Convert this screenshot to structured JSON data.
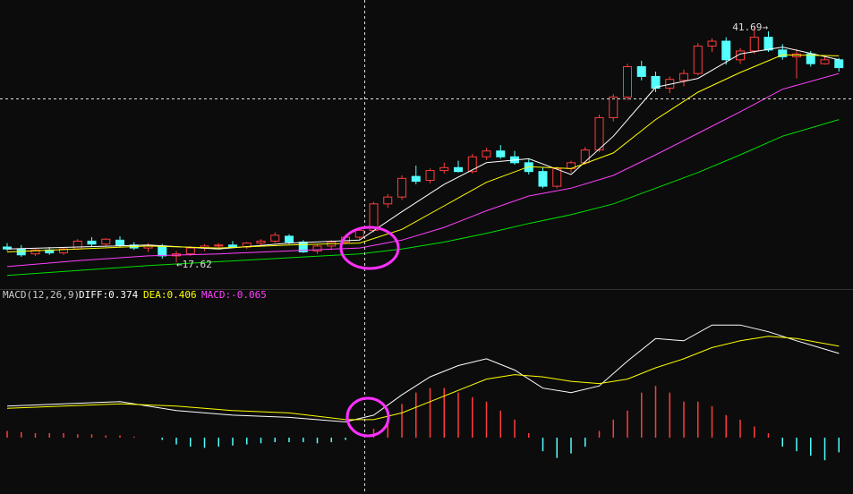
{
  "chart_data": [
    {
      "type": "candlestick",
      "open": [
        19.2,
        19.0,
        18.5,
        18.9,
        18.6,
        19.0,
        19.8,
        19.5,
        19.9,
        19.4,
        19.1,
        19.3,
        18.3,
        18.5,
        19.1,
        19.3,
        19.4,
        19.2,
        19.6,
        19.8,
        20.3,
        19.7,
        18.8,
        19.3,
        19.7,
        20.2,
        20.9,
        23.6,
        24.3,
        26.4,
        26.0,
        27.0,
        27.3,
        26.9,
        28.4,
        29.0,
        28.4,
        27.8,
        26.9,
        25.4,
        27.2,
        27.8,
        29.1,
        32.4,
        34.5,
        37.6,
        36.6,
        35.4,
        36.2,
        36.9,
        39.7,
        40.2,
        38.3,
        39.2,
        40.6,
        39.3,
        38.6,
        38.9,
        37.9,
        38.3
      ],
      "high": [
        19.6,
        19.4,
        19.0,
        19.2,
        19.1,
        20.0,
        20.2,
        20.1,
        20.3,
        19.7,
        19.6,
        19.5,
        18.8,
        19.3,
        19.5,
        19.6,
        19.8,
        19.7,
        20.0,
        20.7,
        20.5,
        19.9,
        19.5,
        19.9,
        20.4,
        21.1,
        23.8,
        24.6,
        26.5,
        27.5,
        27.2,
        27.8,
        28.0,
        28.7,
        29.3,
        29.6,
        29.0,
        28.2,
        27.3,
        27.4,
        28.0,
        29.4,
        32.7,
        34.8,
        37.9,
        38.2,
        37.1,
        36.6,
        37.3,
        40.0,
        40.5,
        40.6,
        39.5,
        41.69,
        41.2,
        39.9,
        39.4,
        39.2,
        38.6,
        38.5
      ],
      "low": [
        18.8,
        18.2,
        18.3,
        18.4,
        18.4,
        18.9,
        19.3,
        19.3,
        19.2,
        18.9,
        18.7,
        18.0,
        17.62,
        18.3,
        18.8,
        19.0,
        19.1,
        19.0,
        19.3,
        19.6,
        19.5,
        18.6,
        18.5,
        18.9,
        19.5,
        19.9,
        20.7,
        23.2,
        24.0,
        25.6,
        25.7,
        26.7,
        26.8,
        26.7,
        28.1,
        28.2,
        27.6,
        26.6,
        25.2,
        25.2,
        26.8,
        27.6,
        28.9,
        32.0,
        34.2,
        36.2,
        35.0,
        34.9,
        35.6,
        36.7,
        39.1,
        37.8,
        37.9,
        38.9,
        39.1,
        38.3,
        36.4,
        37.6,
        37.8,
        37.1
      ],
      "close": [
        19.0,
        18.4,
        18.9,
        18.6,
        19.0,
        19.8,
        19.5,
        20.0,
        19.4,
        19.1,
        19.3,
        18.3,
        18.5,
        19.1,
        19.3,
        19.4,
        19.2,
        19.6,
        19.8,
        20.4,
        19.7,
        18.7,
        19.3,
        19.7,
        20.2,
        20.9,
        23.6,
        24.3,
        26.2,
        25.9,
        27.0,
        27.3,
        26.9,
        28.4,
        29.0,
        28.4,
        27.8,
        26.9,
        25.4,
        27.2,
        27.8,
        29.1,
        32.4,
        34.5,
        37.6,
        36.6,
        35.4,
        36.3,
        36.9,
        39.7,
        40.2,
        38.3,
        39.2,
        40.6,
        39.3,
        38.6,
        38.9,
        37.9,
        38.3,
        37.5
      ],
      "up_color": "#ff3c3c",
      "down_color": "#54ffff",
      "ylim": [
        15,
        44.4
      ],
      "annotations": [
        "41.69→",
        "←17.62"
      ],
      "lines_x": [
        0,
        5,
        10,
        15,
        20,
        25,
        28,
        31,
        34,
        37,
        40,
        43,
        46,
        49,
        52,
        55,
        59
      ],
      "lines": [
        {
          "color": "#ffffff",
          "values": [
            19.0,
            19.2,
            19.4,
            19.0,
            19.6,
            19.9,
            22.8,
            25.6,
            27.8,
            28.2,
            26.6,
            30.5,
            35.5,
            36.4,
            38.9,
            39.6,
            38.3
          ]
        },
        {
          "color": "#ffff00",
          "values": [
            18.7,
            19.0,
            19.3,
            19.1,
            19.4,
            19.6,
            21.0,
            23.4,
            25.8,
            27.4,
            27.2,
            28.8,
            32.2,
            35.0,
            37.0,
            38.8,
            38.7
          ]
        },
        {
          "color": "#ff40ff",
          "values": [
            17.2,
            17.8,
            18.3,
            18.5,
            18.8,
            19.1,
            19.9,
            21.2,
            22.9,
            24.4,
            25.2,
            26.5,
            28.6,
            30.8,
            33.0,
            35.3,
            36.9
          ]
        },
        {
          "color": "#00e000",
          "values": [
            16.3,
            16.8,
            17.3,
            17.7,
            18.1,
            18.5,
            19.0,
            19.7,
            20.6,
            21.6,
            22.5,
            23.6,
            25.2,
            26.8,
            28.6,
            30.5,
            32.2
          ]
        }
      ]
    },
    {
      "type": "macd",
      "title": "MACD(12,26,9)",
      "ylim": [
        -0.25,
        0.6
      ],
      "x": [
        0,
        4,
        8,
        12,
        16,
        20,
        24,
        26,
        28,
        30,
        32,
        34,
        36,
        38,
        40,
        42,
        44,
        46,
        48,
        50,
        52,
        54,
        56,
        59
      ],
      "series": [
        {
          "label": "DIFF:0.374",
          "color": "#ffffff",
          "values": [
            0.14,
            0.15,
            0.16,
            0.12,
            0.1,
            0.09,
            0.07,
            0.1,
            0.19,
            0.27,
            0.32,
            0.35,
            0.3,
            0.22,
            0.2,
            0.23,
            0.34,
            0.44,
            0.43,
            0.5,
            0.5,
            0.47,
            0.43,
            0.374
          ]
        },
        {
          "label": "DEA:0.406",
          "color": "#ffff00",
          "values": [
            0.13,
            0.14,
            0.15,
            0.14,
            0.12,
            0.11,
            0.08,
            0.08,
            0.11,
            0.16,
            0.21,
            0.26,
            0.28,
            0.27,
            0.25,
            0.24,
            0.26,
            0.31,
            0.35,
            0.4,
            0.43,
            0.45,
            0.44,
            0.406
          ]
        }
      ],
      "histogram": {
        "label": "MACD:-0.065",
        "label_color": "#ff40ff",
        "up_color": "#ff3c3c",
        "down_color": "#54ffff",
        "values": [
          0.03,
          0.025,
          0.02,
          0.02,
          0.02,
          0.015,
          0.015,
          0.01,
          0.01,
          0.005,
          0.0,
          -0.01,
          -0.03,
          -0.04,
          -0.045,
          -0.04,
          -0.035,
          -0.03,
          -0.025,
          -0.02,
          -0.02,
          -0.02,
          -0.025,
          -0.02,
          -0.01,
          0.0,
          0.04,
          0.1,
          0.15,
          0.2,
          0.22,
          0.22,
          0.2,
          0.18,
          0.16,
          0.12,
          0.08,
          0.02,
          -0.06,
          -0.09,
          -0.07,
          -0.04,
          0.03,
          0.08,
          0.12,
          0.2,
          0.23,
          0.2,
          0.16,
          0.16,
          0.14,
          0.1,
          0.08,
          0.05,
          0.02,
          -0.04,
          -0.06,
          -0.08,
          -0.1,
          -0.065
        ]
      }
    }
  ]
}
